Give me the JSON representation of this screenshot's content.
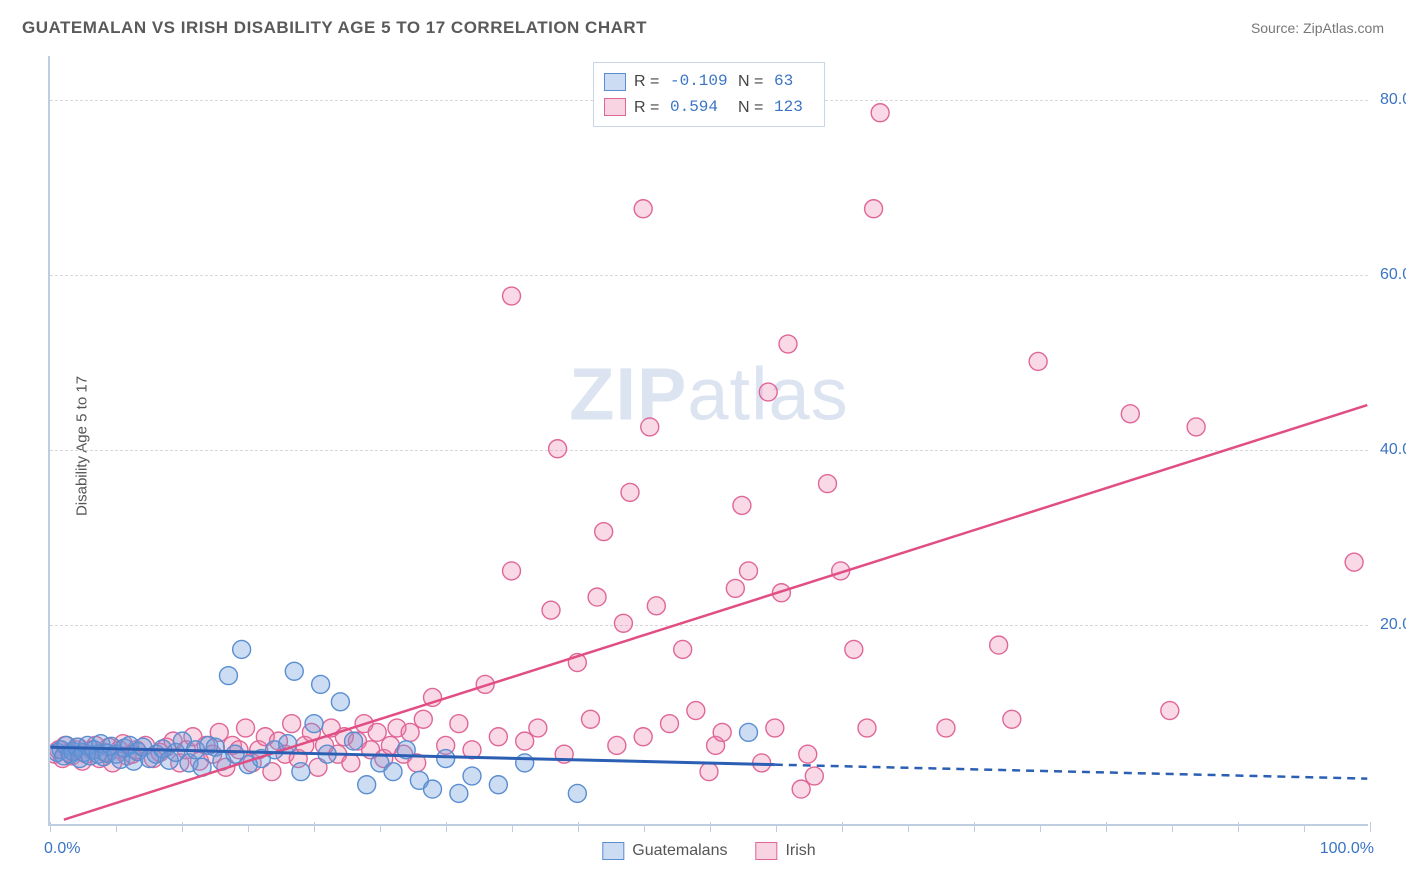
{
  "header": {
    "title": "GUATEMALAN VS IRISH DISABILITY AGE 5 TO 17 CORRELATION CHART",
    "source_label": "Source: ",
    "source_value": "ZipAtlas.com"
  },
  "axes": {
    "ylabel": "Disability Age 5 to 17",
    "xmin": 0.0,
    "xmax": 100.0,
    "ymin": -3.0,
    "ymax": 85.0,
    "xlabel_min": "0.0%",
    "xlabel_max": "100.0%",
    "ytick_values": [
      20.0,
      40.0,
      60.0,
      80.0
    ],
    "ytick_labels": [
      "20.0%",
      "40.0%",
      "60.0%",
      "80.0%"
    ],
    "xtick_major": [
      0,
      10,
      20,
      30,
      40,
      50,
      60,
      70,
      80,
      90,
      100
    ],
    "xtick_minor": [
      5,
      15,
      25,
      35,
      45,
      55,
      65,
      75,
      85,
      95
    ]
  },
  "colors": {
    "blue_fill": "rgba(106,156,220,0.35)",
    "blue_stroke": "#5a8ed0",
    "blue_line": "#2b5fb4",
    "pink_fill": "rgba(235,130,170,0.30)",
    "pink_stroke": "#e06698",
    "pink_line": "#e14e84",
    "grid": "#d8d8d8",
    "axis": "#bfcde0",
    "txt_blue": "#3a74c4",
    "watermark": "rgba(160,185,215,0.38)"
  },
  "marker": {
    "radius": 9,
    "stroke_width": 1.4
  },
  "legend_box": {
    "rows": [
      {
        "swatch": "blue",
        "r_label": "R =",
        "r_value": "-0.109",
        "n_label": "N =",
        "n_value": "63"
      },
      {
        "swatch": "pink",
        "r_label": "R =",
        "r_value": "0.594",
        "n_label": "N =",
        "n_value": "123"
      }
    ]
  },
  "bottom_legend": {
    "items": [
      {
        "swatch": "blue",
        "label": "Guatemalans"
      },
      {
        "swatch": "pink",
        "label": "Irish"
      }
    ]
  },
  "watermark": {
    "zip": "ZIP",
    "atlas": "atlas"
  },
  "trend_lines": {
    "blue": {
      "x1": 0,
      "y1": 5.8,
      "x2_solid": 55,
      "y2_solid": 3.8,
      "x2": 100,
      "y2": 2.2
    },
    "pink": {
      "x1": 1,
      "y1": -2.5,
      "x2": 100,
      "y2": 45.0
    }
  },
  "series": {
    "guatemalan": [
      [
        0.5,
        5.2
      ],
      [
        0.8,
        5.5
      ],
      [
        1.0,
        4.8
      ],
      [
        1.2,
        6.0
      ],
      [
        1.5,
        5.0
      ],
      [
        1.7,
        5.3
      ],
      [
        2.0,
        5.8
      ],
      [
        2.2,
        4.5
      ],
      [
        2.5,
        5.2
      ],
      [
        2.8,
        6.0
      ],
      [
        3.0,
        4.8
      ],
      [
        3.3,
        5.5
      ],
      [
        3.6,
        5.0
      ],
      [
        3.8,
        6.2
      ],
      [
        4.0,
        4.7
      ],
      [
        4.3,
        5.1
      ],
      [
        4.6,
        5.9
      ],
      [
        5.0,
        5.0
      ],
      [
        5.3,
        4.4
      ],
      [
        5.6,
        5.7
      ],
      [
        6.0,
        6.0
      ],
      [
        6.3,
        4.2
      ],
      [
        6.6,
        5.3
      ],
      [
        7.0,
        5.8
      ],
      [
        7.5,
        4.5
      ],
      [
        8.0,
        5.0
      ],
      [
        8.5,
        5.6
      ],
      [
        9.0,
        4.3
      ],
      [
        9.5,
        5.2
      ],
      [
        10.0,
        6.5
      ],
      [
        10.5,
        4.0
      ],
      [
        11.0,
        5.5
      ],
      [
        11.5,
        3.5
      ],
      [
        12.0,
        6.0
      ],
      [
        12.5,
        5.8
      ],
      [
        13.0,
        4.2
      ],
      [
        13.5,
        14.0
      ],
      [
        14.0,
        5.0
      ],
      [
        14.5,
        17.0
      ],
      [
        15.0,
        3.8
      ],
      [
        16.0,
        4.5
      ],
      [
        17.0,
        5.5
      ],
      [
        18.0,
        6.2
      ],
      [
        18.5,
        14.5
      ],
      [
        19.0,
        3.0
      ],
      [
        20.0,
        8.5
      ],
      [
        20.5,
        13.0
      ],
      [
        21.0,
        5.0
      ],
      [
        22.0,
        11.0
      ],
      [
        23.0,
        6.5
      ],
      [
        24.0,
        1.5
      ],
      [
        25.0,
        4.0
      ],
      [
        26.0,
        3.0
      ],
      [
        27.0,
        5.5
      ],
      [
        28.0,
        2.0
      ],
      [
        29.0,
        1.0
      ],
      [
        30.0,
        4.5
      ],
      [
        31.0,
        0.5
      ],
      [
        32.0,
        2.5
      ],
      [
        34.0,
        1.5
      ],
      [
        36.0,
        4.0
      ],
      [
        40.0,
        0.5
      ],
      [
        53.0,
        7.5
      ]
    ],
    "irish": [
      [
        0.3,
        5.0
      ],
      [
        0.6,
        5.5
      ],
      [
        0.9,
        4.5
      ],
      [
        1.1,
        6.0
      ],
      [
        1.4,
        5.2
      ],
      [
        1.6,
        4.8
      ],
      [
        1.9,
        5.5
      ],
      [
        2.1,
        5.8
      ],
      [
        2.4,
        4.2
      ],
      [
        2.7,
        5.0
      ],
      [
        3.1,
        5.5
      ],
      [
        3.4,
        6.0
      ],
      [
        3.7,
        4.5
      ],
      [
        4.1,
        5.2
      ],
      [
        4.4,
        5.8
      ],
      [
        4.7,
        4.0
      ],
      [
        5.2,
        5.5
      ],
      [
        5.5,
        6.2
      ],
      [
        5.8,
        4.8
      ],
      [
        6.2,
        5.0
      ],
      [
        6.5,
        5.5
      ],
      [
        7.2,
        6.0
      ],
      [
        7.8,
        4.5
      ],
      [
        8.3,
        5.2
      ],
      [
        8.8,
        5.8
      ],
      [
        9.3,
        6.5
      ],
      [
        9.8,
        4.0
      ],
      [
        10.3,
        5.5
      ],
      [
        10.8,
        7.0
      ],
      [
        11.3,
        4.2
      ],
      [
        11.8,
        6.0
      ],
      [
        12.3,
        5.0
      ],
      [
        12.8,
        7.5
      ],
      [
        13.3,
        3.5
      ],
      [
        13.8,
        6.0
      ],
      [
        14.3,
        5.5
      ],
      [
        14.8,
        8.0
      ],
      [
        15.3,
        4.0
      ],
      [
        15.8,
        5.5
      ],
      [
        16.3,
        7.0
      ],
      [
        16.8,
        3.0
      ],
      [
        17.3,
        6.5
      ],
      [
        17.8,
        5.0
      ],
      [
        18.3,
        8.5
      ],
      [
        18.8,
        4.5
      ],
      [
        19.3,
        6.0
      ],
      [
        19.8,
        7.5
      ],
      [
        20.3,
        3.5
      ],
      [
        20.8,
        6.0
      ],
      [
        21.3,
        8.0
      ],
      [
        21.8,
        5.0
      ],
      [
        22.3,
        7.0
      ],
      [
        22.8,
        4.0
      ],
      [
        23.3,
        6.5
      ],
      [
        23.8,
        8.5
      ],
      [
        24.3,
        5.5
      ],
      [
        24.8,
        7.5
      ],
      [
        25.3,
        4.5
      ],
      [
        25.8,
        6.0
      ],
      [
        26.3,
        8.0
      ],
      [
        26.8,
        5.0
      ],
      [
        27.3,
        7.5
      ],
      [
        27.8,
        4.0
      ],
      [
        28.3,
        9.0
      ],
      [
        29.0,
        11.5
      ],
      [
        30.0,
        6.0
      ],
      [
        31.0,
        8.5
      ],
      [
        32.0,
        5.5
      ],
      [
        33.0,
        13.0
      ],
      [
        34.0,
        7.0
      ],
      [
        35.0,
        26.0
      ],
      [
        35.0,
        57.5
      ],
      [
        36.0,
        6.5
      ],
      [
        37.0,
        8.0
      ],
      [
        38.0,
        21.5
      ],
      [
        38.5,
        40.0
      ],
      [
        39.0,
        5.0
      ],
      [
        40.0,
        15.5
      ],
      [
        41.0,
        9.0
      ],
      [
        41.5,
        23.0
      ],
      [
        42.0,
        30.5
      ],
      [
        43.0,
        6.0
      ],
      [
        43.5,
        20.0
      ],
      [
        44.0,
        35.0
      ],
      [
        45.0,
        7.0
      ],
      [
        45.0,
        67.5
      ],
      [
        45.5,
        42.5
      ],
      [
        46.0,
        22.0
      ],
      [
        47.0,
        8.5
      ],
      [
        48.0,
        17.0
      ],
      [
        49.0,
        10.0
      ],
      [
        50.0,
        3.0
      ],
      [
        50.5,
        6.0
      ],
      [
        51.0,
        7.5
      ],
      [
        52.0,
        24.0
      ],
      [
        52.5,
        33.5
      ],
      [
        53.0,
        26.0
      ],
      [
        54.0,
        4.0
      ],
      [
        54.5,
        46.5
      ],
      [
        55.0,
        8.0
      ],
      [
        55.5,
        23.5
      ],
      [
        56.0,
        52.0
      ],
      [
        57.0,
        1.0
      ],
      [
        57.5,
        5.0
      ],
      [
        58.0,
        2.5
      ],
      [
        59.0,
        36.0
      ],
      [
        60.0,
        26.0
      ],
      [
        61.0,
        17.0
      ],
      [
        62.0,
        8.0
      ],
      [
        62.5,
        67.5
      ],
      [
        63.0,
        78.5
      ],
      [
        68.0,
        8.0
      ],
      [
        72.0,
        17.5
      ],
      [
        73.0,
        9.0
      ],
      [
        75.0,
        50.0
      ],
      [
        82.0,
        44.0
      ],
      [
        85.0,
        10.0
      ],
      [
        87.0,
        42.5
      ],
      [
        99.0,
        27.0
      ]
    ]
  }
}
